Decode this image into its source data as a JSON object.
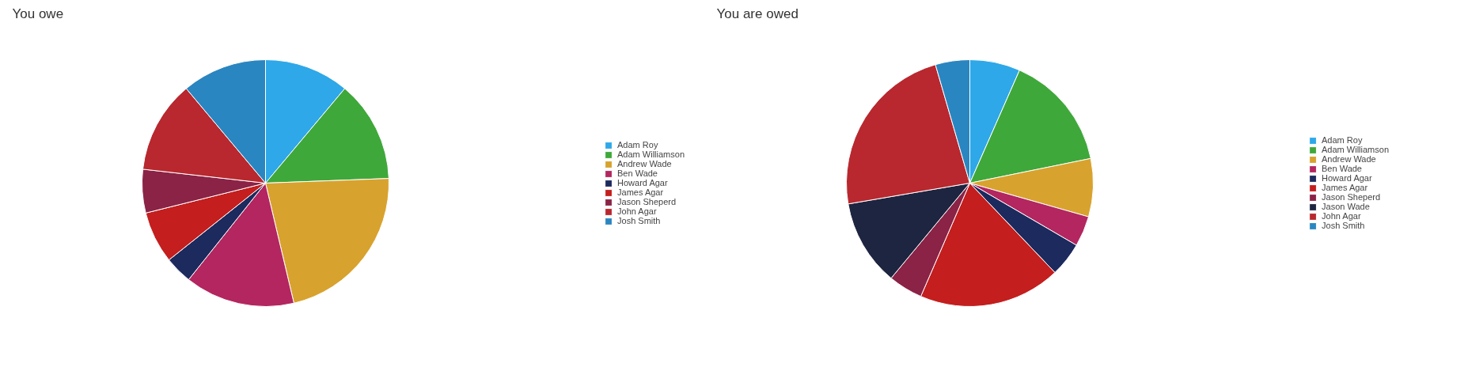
{
  "chart_data": [
    {
      "type": "pie",
      "title": "You owe",
      "categories": [
        "Adam Roy",
        "Adam Williamson",
        "Andrew Wade",
        "Ben Wade",
        "Howard Agar",
        "James Agar",
        "Jason Sheperd",
        "John Agar",
        "Josh Smith"
      ],
      "values": [
        11.1,
        13.3,
        21.9,
        14.4,
        3.6,
        6.8,
        5.7,
        12.1,
        11.1
      ],
      "colors": [
        "#2ea8e8",
        "#3fa83a",
        "#d8a22e",
        "#b3265f",
        "#1c2a5e",
        "#c41e1e",
        "#8b2346",
        "#b8282e",
        "#2a86c0"
      ],
      "legend": "right"
    },
    {
      "type": "pie",
      "title": "You are owed",
      "categories": [
        "Adam Roy",
        "Adam Williamson",
        "Andrew Wade",
        "Ben Wade",
        "Howard Agar",
        "James Agar",
        "Jason Sheperd",
        "Jason Wade",
        "John Agar",
        "Josh Smith"
      ],
      "values": [
        6.6,
        15.2,
        7.6,
        4.0,
        4.5,
        18.6,
        4.5,
        11.3,
        23.2,
        4.5
      ],
      "colors": [
        "#2ea8e8",
        "#3fa83a",
        "#d8a22e",
        "#b3265f",
        "#1c2a5e",
        "#c41e1e",
        "#8b2346",
        "#1e2540",
        "#b8282e",
        "#2a86c0"
      ],
      "legend": "right"
    }
  ]
}
